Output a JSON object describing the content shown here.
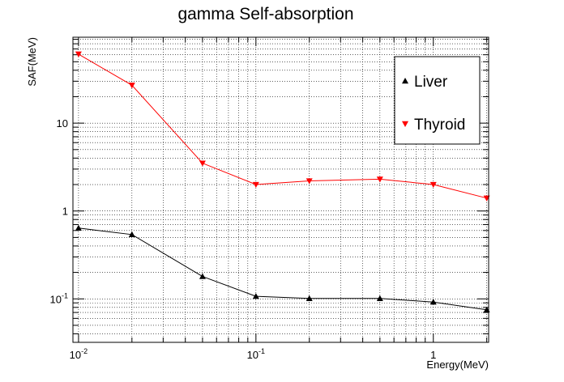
{
  "chart_data": {
    "type": "line",
    "title": "gamma Self-absorption",
    "xlabel": "Energy(MeV)",
    "ylabel": "SAF(MeV)",
    "xscale": "log",
    "yscale": "log",
    "xlim": [
      0.0093,
      2.05
    ],
    "ylim": [
      0.032,
      95
    ],
    "grid": true,
    "legend_position": "top-right",
    "x_ticks": [
      {
        "value": 0.01,
        "base": "10",
        "exp": "-2"
      },
      {
        "value": 0.1,
        "base": "10",
        "exp": "-1"
      },
      {
        "value": 1,
        "base": "1",
        "exp": ""
      }
    ],
    "y_ticks": [
      {
        "value": 0.1,
        "base": "10",
        "exp": "-1"
      },
      {
        "value": 1,
        "base": "1",
        "exp": ""
      },
      {
        "value": 10,
        "base": "10",
        "exp": ""
      }
    ],
    "series": [
      {
        "name": "Liver",
        "color": "#000000",
        "marker": "triangle-up",
        "x": [
          0.01,
          0.02,
          0.05,
          0.1,
          0.2,
          0.5,
          1.0,
          2.0
        ],
        "y": [
          0.64,
          0.54,
          0.18,
          0.107,
          0.101,
          0.101,
          0.092,
          0.075
        ]
      },
      {
        "name": "Thyroid",
        "color": "#ff0000",
        "marker": "triangle-down",
        "x": [
          0.01,
          0.02,
          0.05,
          0.1,
          0.2,
          0.5,
          1.0,
          2.0
        ],
        "y": [
          61,
          27,
          3.5,
          2.0,
          2.2,
          2.3,
          2.0,
          1.4
        ]
      }
    ]
  }
}
